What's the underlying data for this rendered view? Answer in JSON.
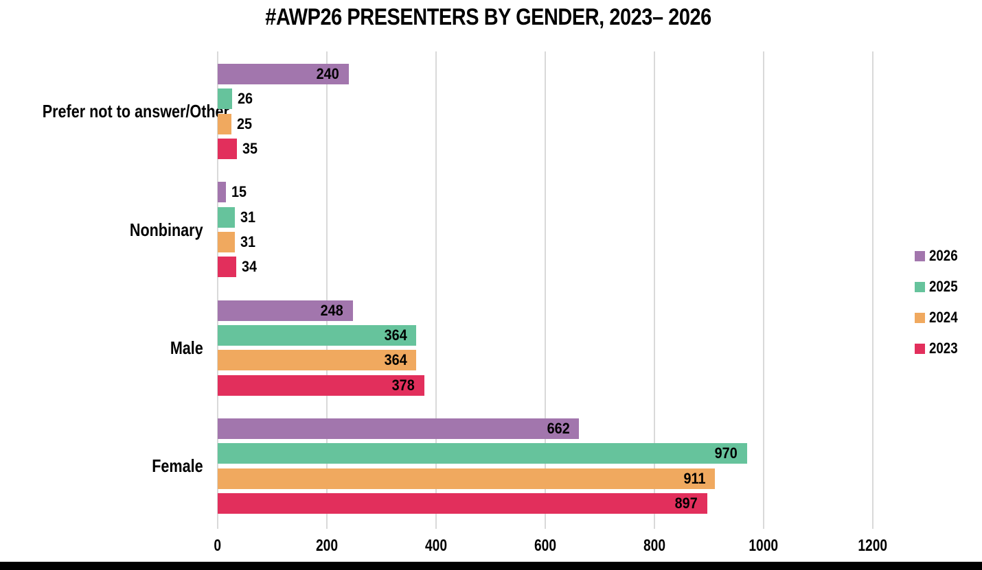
{
  "title": "#AWP26 PRESENTERS BY GENDER, 2023– 2026",
  "chart_data": {
    "type": "bar",
    "orientation": "horizontal",
    "title": "#AWP26 PRESENTERS BY GENDER, 2023– 2026",
    "categories": [
      "Prefer not to answer/Other",
      "Nonbinary",
      "Male",
      "Female"
    ],
    "series": [
      {
        "name": "2026",
        "color": "#a276ad",
        "values": [
          240,
          15,
          248,
          662
        ]
      },
      {
        "name": "2025",
        "color": "#66c39c",
        "values": [
          26,
          31,
          364,
          970
        ]
      },
      {
        "name": "2024",
        "color": "#f0a95f",
        "values": [
          25,
          31,
          364,
          911
        ]
      },
      {
        "name": "2023",
        "color": "#e22f5c",
        "values": [
          35,
          34,
          378,
          897
        ]
      }
    ],
    "xlabel": "",
    "ylabel": "",
    "x_ticks": [
      0,
      200,
      400,
      600,
      800,
      1000,
      1200
    ],
    "xlim": [
      0,
      1300
    ],
    "grid": true,
    "gridline_color": "#d9d9d9",
    "legend_position": "right",
    "legend_entries": [
      "2026",
      "2025",
      "2024",
      "2023"
    ],
    "value_labels": true
  }
}
